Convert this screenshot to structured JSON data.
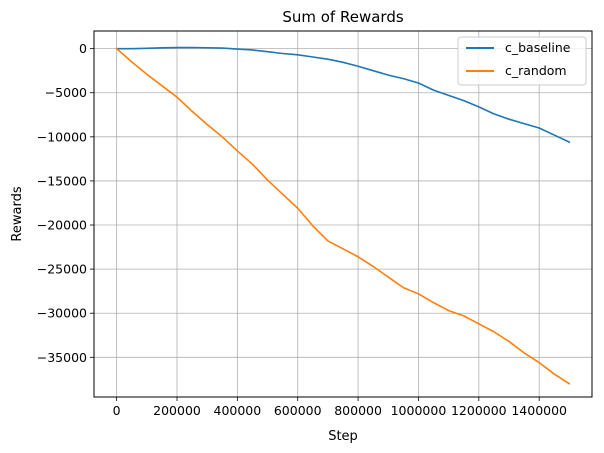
{
  "chart_data": {
    "type": "line",
    "title": "Sum of Rewards",
    "xlabel": "Step",
    "ylabel": "Rewards",
    "xlim": [
      -75000,
      1575000
    ],
    "ylim": [
      -39500,
      2000
    ],
    "xticks": [
      0,
      200000,
      400000,
      600000,
      800000,
      1000000,
      1200000,
      1400000
    ],
    "xtick_labels": [
      "0",
      "200000",
      "400000",
      "600000",
      "800000",
      "1000000",
      "1200000",
      "1400000"
    ],
    "yticks": [
      0,
      -5000,
      -10000,
      -15000,
      -20000,
      -25000,
      -30000,
      -35000
    ],
    "ytick_labels": [
      "0",
      "−5000",
      "−10000",
      "−15000",
      "−20000",
      "−25000",
      "−30000",
      "−35000"
    ],
    "grid": true,
    "legend_position": "top-right",
    "series": [
      {
        "name": "c_baseline",
        "color": "#1f77b4",
        "x": [
          0,
          50000,
          100000,
          150000,
          200000,
          250000,
          300000,
          350000,
          400000,
          450000,
          500000,
          550000,
          600000,
          650000,
          700000,
          750000,
          800000,
          850000,
          900000,
          950000,
          1000000,
          1050000,
          1100000,
          1150000,
          1200000,
          1250000,
          1300000,
          1350000,
          1400000,
          1450000,
          1500000
        ],
        "y": [
          0,
          0,
          40,
          90,
          120,
          130,
          100,
          60,
          -50,
          -150,
          -350,
          -550,
          -700,
          -950,
          -1200,
          -1550,
          -2000,
          -2500,
          -3000,
          -3400,
          -3900,
          -4700,
          -5300,
          -5900,
          -6600,
          -7400,
          -8000,
          -8500,
          -9000,
          -9800,
          -10600
        ]
      },
      {
        "name": "c_random",
        "color": "#ff7f0e",
        "x": [
          0,
          50000,
          100000,
          150000,
          200000,
          250000,
          300000,
          350000,
          400000,
          450000,
          500000,
          550000,
          600000,
          650000,
          700000,
          750000,
          800000,
          850000,
          900000,
          950000,
          1000000,
          1050000,
          1100000,
          1150000,
          1200000,
          1250000,
          1300000,
          1350000,
          1400000,
          1450000,
          1500000
        ],
        "y": [
          0,
          -1500,
          -2900,
          -4200,
          -5500,
          -7100,
          -8600,
          -10000,
          -11600,
          -13100,
          -14900,
          -16500,
          -18100,
          -20100,
          -21800,
          -22700,
          -23600,
          -24700,
          -25900,
          -27100,
          -27800,
          -28800,
          -29700,
          -30300,
          -31200,
          -32100,
          -33200,
          -34500,
          -35600,
          -36900,
          -38000
        ]
      }
    ]
  }
}
